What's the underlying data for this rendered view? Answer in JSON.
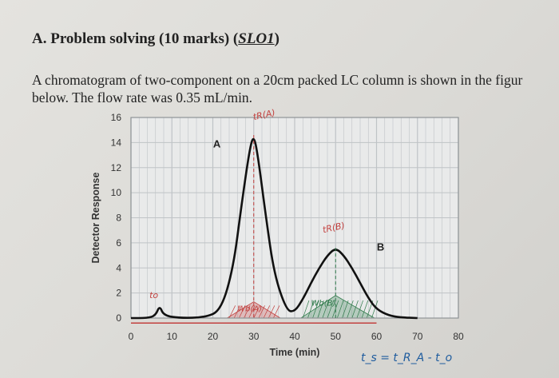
{
  "heading": {
    "prefix": "A. Problem solving (10 marks) (",
    "slo": "SLO1",
    "suffix": ")"
  },
  "problem_text": [
    "A chromatogram of two-component on a 20cm packed LC column is shown in the figur",
    "below. The flow rate was 0.35 mL/min."
  ],
  "chart_data": {
    "type": "line",
    "xlabel": "Time (min)",
    "ylabel": "Detector Response",
    "xlim": [
      0,
      80
    ],
    "ylim": [
      0,
      16
    ],
    "x_ticks": [
      0,
      10,
      20,
      30,
      40,
      50,
      60,
      70,
      80
    ],
    "y_ticks": [
      0,
      2,
      4,
      6,
      8,
      10,
      12,
      14,
      16
    ],
    "grid": true,
    "series": [
      {
        "x": [
          0,
          4,
          6,
          7,
          8,
          12,
          18,
          22,
          25,
          27,
          29,
          30,
          31,
          33,
          35,
          38,
          40,
          42,
          44,
          46,
          48,
          50,
          52,
          54,
          56,
          58,
          60,
          63,
          66,
          70
        ],
        "y": [
          0,
          0,
          0.2,
          1,
          0.2,
          0,
          0.05,
          0.6,
          4,
          9,
          13.5,
          14.6,
          13,
          8,
          3.5,
          0.6,
          0.5,
          1.5,
          2.8,
          4.0,
          5.0,
          5.6,
          5.0,
          4.0,
          2.8,
          1.6,
          0.7,
          0.2,
          0.05,
          0
        ]
      }
    ],
    "peak_labels": [
      {
        "text": "A",
        "x": 21,
        "y": 13.6
      },
      {
        "text": "B",
        "x": 61,
        "y": 5.4
      }
    ]
  },
  "annotations": {
    "t0": "to",
    "tr_a": "tR(A)",
    "tr_b": "tR(B)",
    "wb_a": "Wb(A)",
    "wb_b": "Wb(B)",
    "formula": "t_s = t_R_A - t_o"
  },
  "colors": {
    "signal": "#111111",
    "handwriting_red": "#c2413f",
    "handwriting_green": "#2f7a4a",
    "grid": "#bfc3c6",
    "frame": "#8f9497"
  }
}
